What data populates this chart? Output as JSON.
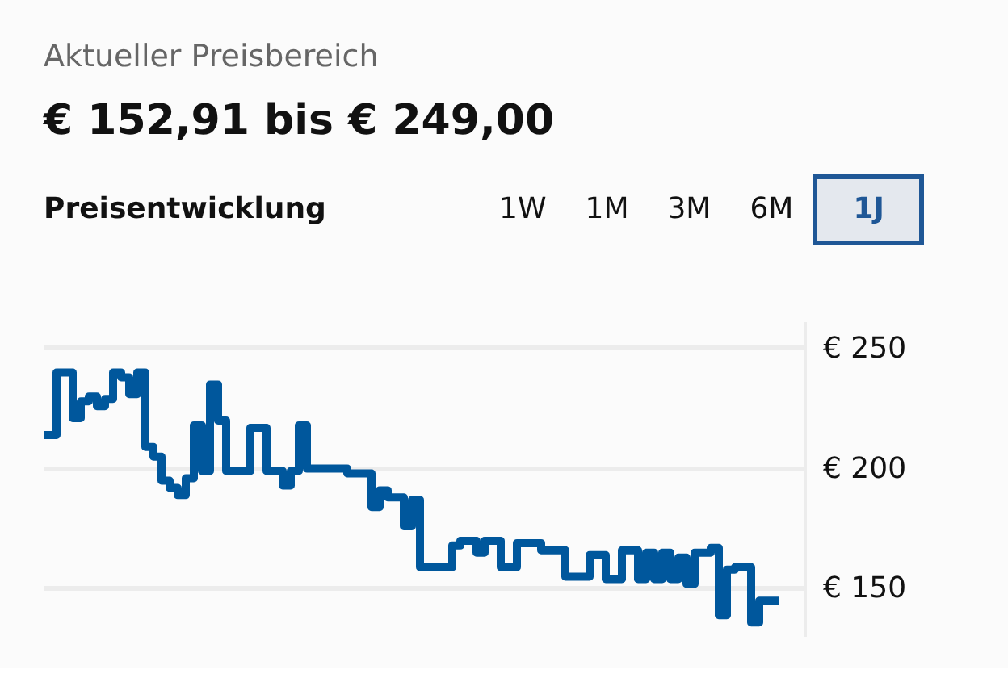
{
  "chart_data": {
    "type": "step",
    "title": "Aktueller Preisbereich",
    "subtitle": "€ 152,91 bis € 249,00",
    "annotations": [
      "Preisentwicklung",
      "1W",
      "1M",
      "3M",
      "6M",
      "1J"
    ],
    "categories": [
      null,
      null,
      null,
      null,
      null,
      null,
      null,
      null,
      null,
      null,
      null,
      null,
      null,
      null,
      null,
      null,
      null,
      null,
      null,
      null,
      null,
      null,
      null,
      null,
      null,
      null,
      null,
      null,
      null,
      null,
      null,
      null,
      null,
      null,
      null,
      null,
      null,
      null,
      null,
      null,
      null,
      null,
      null,
      null,
      null,
      null,
      null,
      null,
      null,
      null,
      null,
      null,
      null,
      null,
      null,
      null,
      null,
      null,
      null,
      null,
      null,
      null,
      null,
      null,
      null,
      null,
      null,
      null,
      null,
      null,
      null,
      null,
      null,
      null,
      null,
      null,
      null,
      null,
      null,
      null,
      null,
      null,
      null,
      null,
      null,
      null,
      null,
      null,
      null,
      null,
      null,
      null
    ],
    "series": [
      {
        "color": "#00579c",
        "values": [
          214,
          214,
          240,
          240,
          221,
          228,
          230,
          226,
          229,
          240,
          238,
          231,
          240,
          209,
          205,
          195,
          192,
          189,
          196,
          218,
          199,
          235,
          220,
          199,
          199,
          199,
          217,
          217,
          199,
          199,
          193,
          199,
          218,
          200,
          200,
          200,
          200,
          200,
          198,
          198,
          198,
          184,
          191,
          188,
          188,
          176,
          187,
          159,
          159,
          159,
          159,
          168,
          170,
          170,
          165,
          170,
          170,
          159,
          159,
          169,
          169,
          169,
          166,
          166,
          166,
          155,
          155,
          155,
          164,
          164,
          154,
          154,
          166,
          166,
          154,
          165,
          154,
          165,
          154,
          163,
          152,
          165,
          165,
          167,
          139,
          158,
          159,
          159,
          136,
          145,
          145,
          145
        ]
      }
    ],
    "yticks": [
      {
        "value": 150,
        "label": "€ 150"
      },
      {
        "value": 200,
        "label": "€ 200"
      },
      {
        "value": 250,
        "label": "€ 250"
      }
    ],
    "ylim": [
      130,
      261
    ],
    "grid": "y",
    "marker": "none",
    "line_style": "solid"
  }
}
